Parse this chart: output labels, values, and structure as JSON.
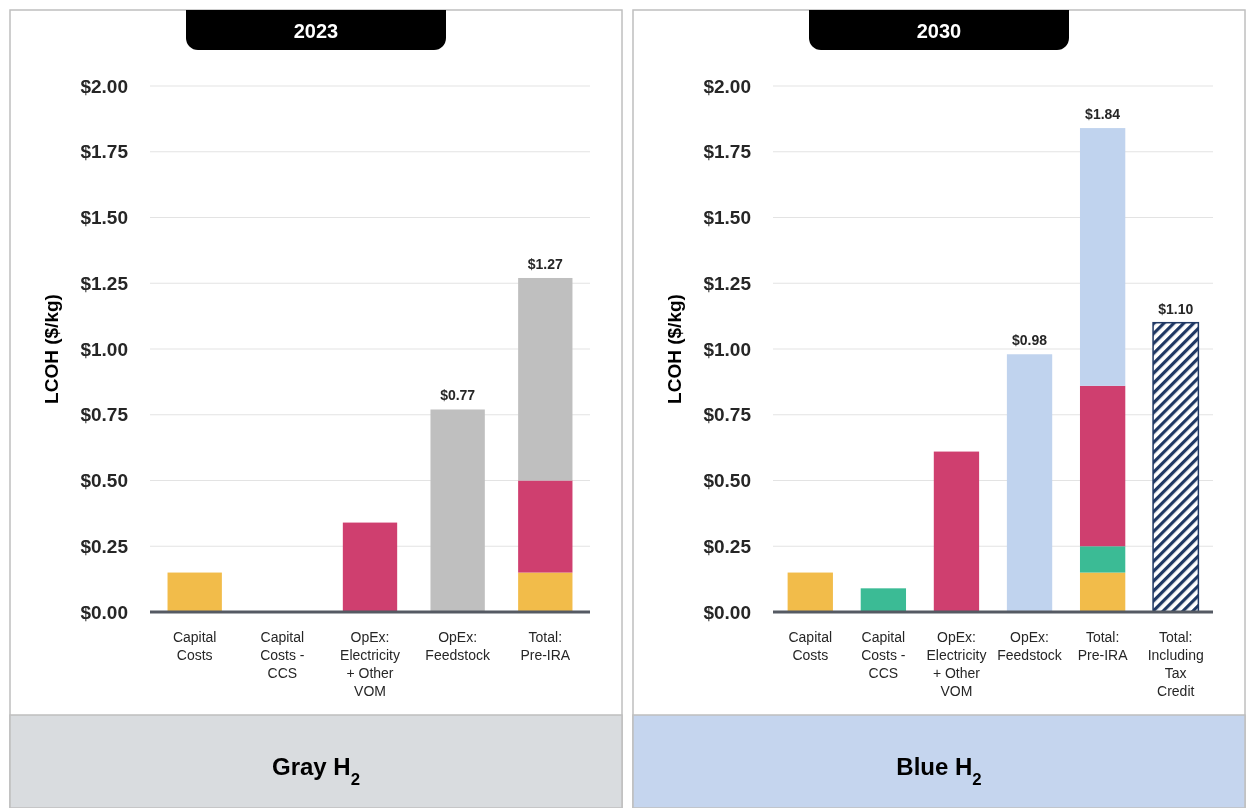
{
  "chart_data": [
    {
      "type": "bar",
      "title": "2023",
      "ylabel": "LCOH ($/kg)",
      "stacked": true,
      "grid": "y",
      "categories": [
        "Capital Costs",
        "Capital Costs - CCS",
        "OpEx: Electricity + Other VOM",
        "OpEx: Feedstock",
        "Total: Pre-IRA"
      ],
      "series": [
        {
          "color": "#f2bc4a",
          "values": [
            0.15,
            null,
            null,
            null,
            0.15
          ]
        },
        {
          "color": "#cf3f6f",
          "values": [
            null,
            null,
            0.34,
            null,
            0.35
          ]
        },
        {
          "color": "#bfbfbf",
          "values": [
            null,
            null,
            null,
            0.77,
            0.77
          ]
        }
      ],
      "ylim": [
        0,
        2
      ],
      "yticks": [
        {
          "value": 0,
          "label": "$0.00"
        },
        {
          "value": 0.25,
          "label": "$0.25"
        },
        {
          "value": 0.5,
          "label": "$0.50"
        },
        {
          "value": 0.75,
          "label": "$0.75"
        },
        {
          "value": 1,
          "label": "$1.00"
        },
        {
          "value": 1.25,
          "label": "$1.25"
        },
        {
          "value": 1.5,
          "label": "$1.50"
        },
        {
          "value": 1.75,
          "label": "$1.75"
        },
        {
          "value": 2,
          "label": "$2.00"
        }
      ],
      "totals": [
        null,
        null,
        null,
        "$0.77",
        "$1.27"
      ],
      "annotations": [
        "Gray H$_{2}$"
      ]
    },
    {
      "type": "bar",
      "title": "2030",
      "ylabel": "LCOH ($/kg)",
      "stacked": true,
      "grid": "y",
      "categories": [
        "Capital Costs",
        "Capital Costs - CCS",
        "OpEx: Electricity + Other VOM",
        "OpEx: Feedstock",
        "Total: Pre-IRA",
        "Total: Including Tax Credit"
      ],
      "series": [
        {
          "color": "#f2bc4a",
          "values": [
            0.15,
            null,
            null,
            null,
            0.15,
            null
          ]
        },
        {
          "color": "#3bbb95",
          "values": [
            null,
            0.09,
            null,
            null,
            0.1,
            null
          ]
        },
        {
          "color": "#cf3f6f",
          "values": [
            null,
            null,
            0.61,
            null,
            0.61,
            null
          ]
        },
        {
          "color": "#c0d3ee",
          "values": [
            null,
            null,
            null,
            0.98,
            0.98,
            null
          ]
        },
        {
          "color": "#1f3864",
          "values": [
            null,
            null,
            null,
            null,
            null,
            1.1
          ]
        }
      ],
      "ylim": [
        0,
        2
      ],
      "yticks": [
        {
          "value": 0,
          "label": "$0.00"
        },
        {
          "value": 0.25,
          "label": "$0.25"
        },
        {
          "value": 0.5,
          "label": "$0.50"
        },
        {
          "value": 0.75,
          "label": "$0.75"
        },
        {
          "value": 1,
          "label": "$1.00"
        },
        {
          "value": 1.25,
          "label": "$1.25"
        },
        {
          "value": 1.5,
          "label": "$1.50"
        },
        {
          "value": 1.75,
          "label": "$1.75"
        },
        {
          "value": 2,
          "label": "$2.00"
        }
      ],
      "totals": [
        null,
        null,
        null,
        "$0.98",
        "$1.84",
        "$1.10"
      ],
      "annotations": [
        "Blue H$_{2}$"
      ]
    }
  ]
}
